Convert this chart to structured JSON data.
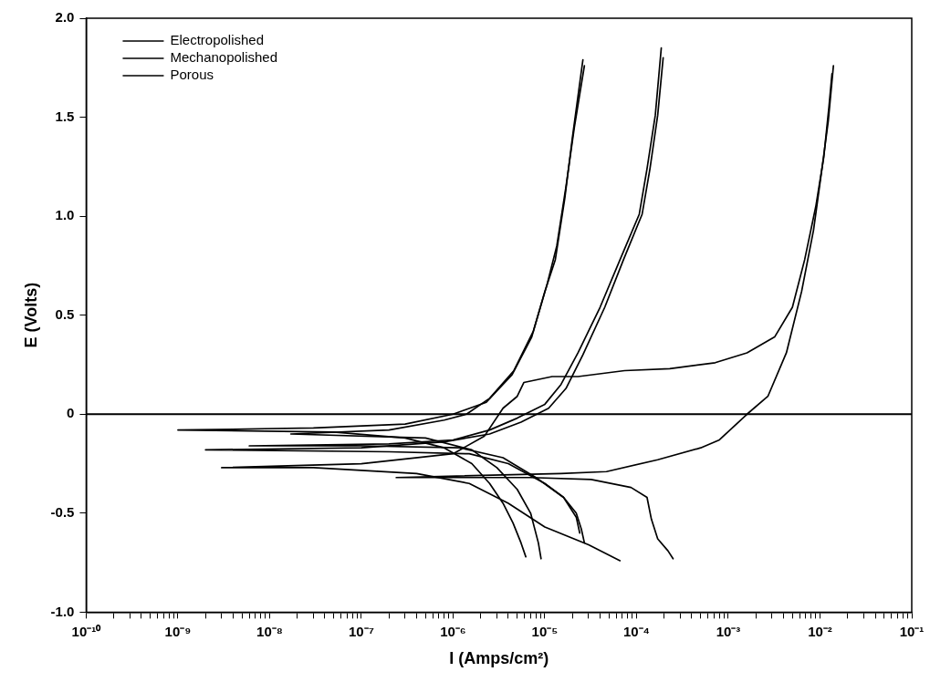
{
  "chart_data": {
    "type": "line",
    "xlabel": "I (Amps/cm²)",
    "ylabel": "E (Volts)",
    "log": "x",
    "legend": "top left",
    "grid": false,
    "xlim": [
      1e-10,
      0.1
    ],
    "ylim": [
      -1,
      2
    ],
    "xticks": [
      {
        "value": 1e-10,
        "label": "10⁻¹⁰"
      },
      {
        "value": 2e-10,
        "label": null
      },
      {
        "value": 3e-10,
        "label": null
      },
      {
        "value": 4e-10,
        "label": null
      },
      {
        "value": 5e-10,
        "label": null
      },
      {
        "value": 6e-10,
        "label": null
      },
      {
        "value": 7e-10,
        "label": null
      },
      {
        "value": 8e-10,
        "label": null
      },
      {
        "value": 9e-10,
        "label": null
      },
      {
        "value": 1e-09,
        "label": "10⁻⁹"
      },
      {
        "value": 2e-09,
        "label": null
      },
      {
        "value": 3e-09,
        "label": null
      },
      {
        "value": 4e-09,
        "label": null
      },
      {
        "value": 5e-09,
        "label": null
      },
      {
        "value": 6e-09,
        "label": null
      },
      {
        "value": 7e-09,
        "label": null
      },
      {
        "value": 8e-09,
        "label": null
      },
      {
        "value": 9e-09,
        "label": null
      },
      {
        "value": 1e-08,
        "label": "10⁻⁸"
      },
      {
        "value": 2e-08,
        "label": null
      },
      {
        "value": 3e-08,
        "label": null
      },
      {
        "value": 4e-08,
        "label": null
      },
      {
        "value": 5e-08,
        "label": null
      },
      {
        "value": 6e-08,
        "label": null
      },
      {
        "value": 7e-08,
        "label": null
      },
      {
        "value": 8e-08,
        "label": null
      },
      {
        "value": 9e-08,
        "label": null
      },
      {
        "value": 1e-07,
        "label": "10⁻⁷"
      },
      {
        "value": 2e-07,
        "label": null
      },
      {
        "value": 3e-07,
        "label": null
      },
      {
        "value": 4e-07,
        "label": null
      },
      {
        "value": 5e-07,
        "label": null
      },
      {
        "value": 6e-07,
        "label": null
      },
      {
        "value": 7e-07,
        "label": null
      },
      {
        "value": 8e-07,
        "label": null
      },
      {
        "value": 9e-07,
        "label": null
      },
      {
        "value": 1e-06,
        "label": "10⁻⁶"
      },
      {
        "value": 2e-06,
        "label": null
      },
      {
        "value": 3e-06,
        "label": null
      },
      {
        "value": 4e-06,
        "label": null
      },
      {
        "value": 5e-06,
        "label": null
      },
      {
        "value": 6e-06,
        "label": null
      },
      {
        "value": 7e-06,
        "label": null
      },
      {
        "value": 8e-06,
        "label": null
      },
      {
        "value": 9e-06,
        "label": null
      },
      {
        "value": 1e-05,
        "label": "10⁻⁵"
      },
      {
        "value": 2e-05,
        "label": null
      },
      {
        "value": 3e-05,
        "label": null
      },
      {
        "value": 4e-05,
        "label": null
      },
      {
        "value": 5e-05,
        "label": null
      },
      {
        "value": 6e-05,
        "label": null
      },
      {
        "value": 7e-05,
        "label": null
      },
      {
        "value": 8e-05,
        "label": null
      },
      {
        "value": 9e-05,
        "label": null
      },
      {
        "value": 0.0001,
        "label": "10⁻⁴"
      },
      {
        "value": 0.0002,
        "label": null
      },
      {
        "value": 0.0003,
        "label": null
      },
      {
        "value": 0.0004,
        "label": null
      },
      {
        "value": 0.0005,
        "label": null
      },
      {
        "value": 0.0006,
        "label": null
      },
      {
        "value": 0.0007,
        "label": null
      },
      {
        "value": 0.0008,
        "label": null
      },
      {
        "value": 0.0009,
        "label": null
      },
      {
        "value": 0.001,
        "label": "10⁻³"
      },
      {
        "value": 0.002,
        "label": null
      },
      {
        "value": 0.003,
        "label": null
      },
      {
        "value": 0.004,
        "label": null
      },
      {
        "value": 0.005,
        "label": null
      },
      {
        "value": 0.006,
        "label": null
      },
      {
        "value": 0.007,
        "label": null
      },
      {
        "value": 0.008,
        "label": null
      },
      {
        "value": 0.009,
        "label": null
      },
      {
        "value": 0.01,
        "label": "10⁻²"
      },
      {
        "value": 0.02,
        "label": null
      },
      {
        "value": 0.03,
        "label": null
      },
      {
        "value": 0.04,
        "label": null
      },
      {
        "value": 0.05,
        "label": null
      },
      {
        "value": 0.06,
        "label": null
      },
      {
        "value": 0.07,
        "label": null
      },
      {
        "value": 0.08,
        "label": null
      },
      {
        "value": 0.09,
        "label": null
      },
      {
        "value": 0.1,
        "label": "10⁻¹"
      }
    ],
    "yticks": [
      {
        "value": -1,
        "label": "-1.0"
      },
      {
        "value": -0.5,
        "label": "-0.5"
      },
      0,
      {
        "value": 0.5,
        "label": "0.5"
      },
      {
        "value": 1,
        "label": "1.0"
      },
      {
        "value": 1.5,
        "label": "1.5"
      },
      {
        "value": 2,
        "label": "2.0"
      }
    ],
    "ref_lines": [
      {
        "axis": "y",
        "value": 0,
        "color": "#000000"
      }
    ],
    "series": [
      {
        "name": "Electropolished",
        "color": "#000000",
        "x": [
          6.2e-06,
          5.5e-06,
          4.5e-06,
          3.5e-06,
          2.5e-06,
          1.6e-06,
          8e-07,
          3e-07,
          5e-08,
          1e-09,
          3e-08,
          3e-07,
          1e-06,
          2.3e-06,
          4.4e-06,
          7.2e-06,
          1e-05,
          1.3e-05,
          1.65e-05,
          2e-05,
          2.6e-05
        ],
        "values": [
          -0.72,
          -0.65,
          -0.55,
          -0.45,
          -0.35,
          -0.25,
          -0.17,
          -0.12,
          -0.09,
          -0.08,
          -0.07,
          -0.05,
          0,
          0.06,
          0.2,
          0.39,
          0.62,
          0.78,
          1.09,
          1.4,
          1.79
        ]
      },
      {
        "color": "#000000",
        "x": [
          9.1e-06,
          8.5e-06,
          7e-06,
          5e-06,
          3e-06,
          1.6e-06,
          5e-07,
          1.7e-08,
          2e-07,
          8e-07,
          1.4e-06,
          2.5e-06,
          4.6e-06,
          7.5e-06,
          1.05e-05,
          1.35e-05,
          1.7e-05,
          2.1e-05,
          2.7e-05
        ],
        "values": [
          -0.73,
          -0.65,
          -0.5,
          -0.38,
          -0.27,
          -0.18,
          -0.12,
          -0.1,
          -0.08,
          -0.03,
          0,
          0.08,
          0.22,
          0.42,
          0.65,
          0.85,
          1.15,
          1.45,
          1.76
        ]
      },
      {
        "name": "Mechanopolished",
        "color": "#000000",
        "x": [
          2.7e-05,
          2.5e-05,
          2.2e-05,
          1.6e-05,
          8e-06,
          3.5e-06,
          1.2e-06,
          1e-07,
          6e-09,
          2e-07,
          1e-06,
          2.5e-06,
          5e-06,
          1e-05,
          1.5e-05,
          2.3e-05,
          4e-05,
          6.6e-05,
          0.000107,
          0.00013,
          0.00016,
          0.000186
        ],
        "values": [
          -0.65,
          -0.58,
          -0.5,
          -0.42,
          -0.32,
          -0.22,
          -0.17,
          -0.16,
          -0.16,
          -0.15,
          -0.13,
          -0.08,
          -0.02,
          0.05,
          0.15,
          0.31,
          0.54,
          0.78,
          1.01,
          1.24,
          1.51,
          1.85
        ]
      },
      {
        "color": "#000000",
        "x": [
          2.4e-05,
          2.2e-05,
          1.6e-05,
          1e-05,
          4e-06,
          1.5e-06,
          2e-07,
          2e-09,
          1e-07,
          8e-07,
          2.5e-06,
          5.5e-06,
          1.1e-05,
          1.7e-05,
          2.6e-05,
          4.5e-05,
          7.2e-05,
          0.000115,
          0.00014,
          0.00017,
          0.000195
        ],
        "values": [
          -0.6,
          -0.52,
          -0.42,
          -0.35,
          -0.25,
          -0.2,
          -0.19,
          -0.18,
          -0.17,
          -0.14,
          -0.1,
          -0.04,
          0.03,
          0.13,
          0.3,
          0.54,
          0.78,
          1.01,
          1.24,
          1.51,
          1.8
        ]
      },
      {
        "name": "Porous",
        "color": "#000000",
        "x": [
          0.00025,
          0.00022,
          0.00017,
          0.000145,
          0.00013,
          8.7e-05,
          3.2e-05,
          7e-06,
          2.4e-07,
          1.5e-05,
          4.7e-05,
          0.00017,
          0.0005,
          0.0008,
          0.0016,
          0.0027,
          0.0043,
          0.0063,
          0.0085,
          0.0105,
          0.0123,
          0.014
        ],
        "values": [
          -0.73,
          -0.69,
          -0.63,
          -0.53,
          -0.42,
          -0.37,
          -0.33,
          -0.32,
          -0.32,
          -0.3,
          -0.29,
          -0.23,
          -0.17,
          -0.13,
          0,
          0.09,
          0.31,
          0.62,
          0.93,
          1.24,
          1.48,
          1.76
        ]
      },
      {
        "color": "#000000",
        "x": [
          6.6e-05,
          3e-05,
          1e-05,
          4e-06,
          1.5e-06,
          4e-07,
          3e-08,
          3e-09,
          1e-07,
          1e-06,
          2.2e-06,
          3.5e-06,
          5e-06,
          5.9e-06,
          1.2e-05,
          2.3e-05,
          7.4e-05,
          0.00023,
          0.00072,
          0.0016,
          0.0032,
          0.005,
          0.0068,
          0.009,
          0.011,
          0.0125,
          0.0135
        ],
        "values": [
          -0.74,
          -0.66,
          -0.57,
          -0.45,
          -0.35,
          -0.3,
          -0.27,
          -0.27,
          -0.25,
          -0.2,
          -0.11,
          0.03,
          0.09,
          0.16,
          0.19,
          0.19,
          0.22,
          0.23,
          0.26,
          0.31,
          0.39,
          0.54,
          0.78,
          1.05,
          1.3,
          1.55,
          1.72
        ]
      }
    ]
  }
}
